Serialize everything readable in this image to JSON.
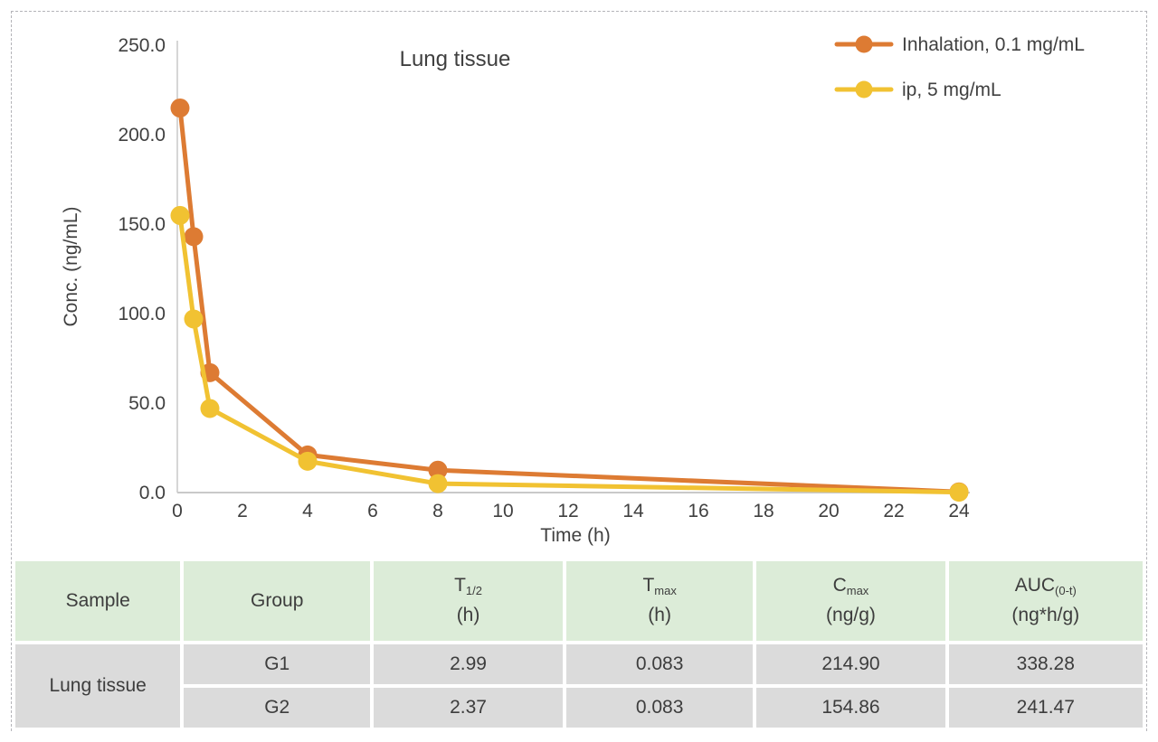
{
  "chart_data": {
    "type": "line",
    "title": "Lung tissue",
    "xlabel": "Time (h)",
    "ylabel": "Conc. (ng/mL)",
    "x": [
      0.083,
      0.5,
      1,
      4,
      8,
      24
    ],
    "series": [
      {
        "name": "Inhalation, 0.1 mg/mL",
        "color": "#DD7B33",
        "values": [
          214.9,
          143,
          67,
          21,
          12.5,
          0.4
        ]
      },
      {
        "name": "ip, 5 mg/mL",
        "color": "#F1C232",
        "values": [
          154.86,
          97,
          47,
          17.5,
          5,
          0.2
        ]
      }
    ],
    "x_ticks": [
      0,
      2,
      4,
      6,
      8,
      10,
      12,
      14,
      16,
      18,
      20,
      22,
      24
    ],
    "y_ticks": [
      0,
      50,
      100,
      150,
      200,
      250
    ],
    "xlim": [
      0,
      24
    ],
    "ylim": [
      0,
      250
    ],
    "grid": false,
    "legend_position": "top-right",
    "axis_color": "#c9c9c9",
    "text_color": "#404040"
  },
  "table": {
    "headers": [
      {
        "main": "Sample",
        "sub": "",
        "unit": ""
      },
      {
        "main": "Group",
        "sub": "",
        "unit": ""
      },
      {
        "main": "T",
        "sub": "1/2",
        "unit": "(h)"
      },
      {
        "main": "T",
        "sub": "max",
        "unit": "(h)"
      },
      {
        "main": "C",
        "sub": "max",
        "unit": "(ng/g)"
      },
      {
        "main": "AUC",
        "sub": "(0-t)",
        "unit": "(ng*h/g)"
      }
    ],
    "sample_label": "Lung tissue",
    "rows": [
      {
        "group": "G1",
        "t_half": "2.99",
        "t_max": "0.083",
        "c_max": "214.90",
        "auc": "338.28"
      },
      {
        "group": "G2",
        "t_half": "2.37",
        "t_max": "0.083",
        "c_max": "154.86",
        "auc": "241.47"
      }
    ]
  }
}
